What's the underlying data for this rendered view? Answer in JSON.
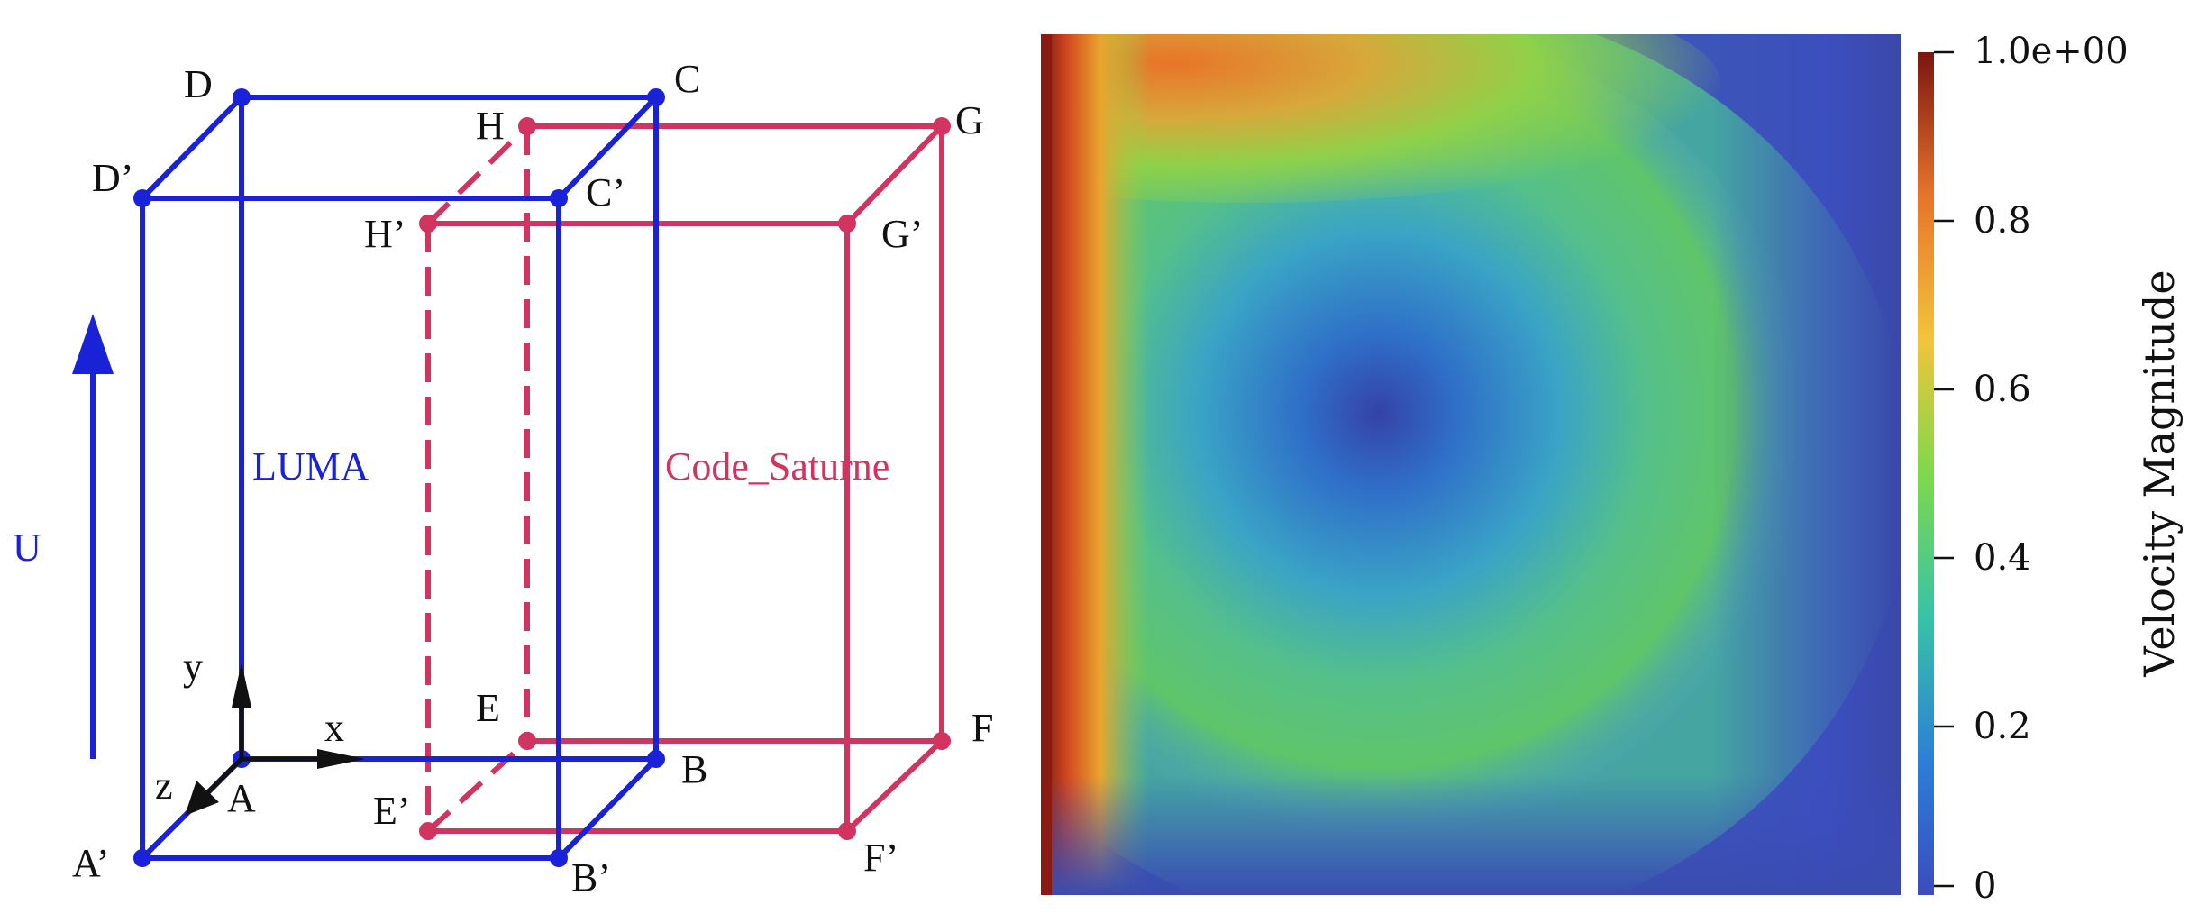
{
  "diagram": {
    "luma_label": "LUMA",
    "code_saturne_label": "Code_Saturne",
    "flow_label": "U",
    "axes": {
      "x": "x",
      "y": "y",
      "z": "z"
    },
    "luma_vertices": [
      "A",
      "B",
      "C",
      "D",
      "A’",
      "B’",
      "C’",
      "D’"
    ],
    "code_saturne_vertices": [
      "E",
      "F",
      "G",
      "H",
      "E’",
      "F’",
      "G’",
      "H’"
    ],
    "colors": {
      "luma": "#1a22d8",
      "code_saturne": "#d0345f",
      "flow_arrow": "#1a22d8"
    }
  },
  "velocity_field": {
    "colorbar_title": "Velocity Magnitude",
    "colorbar_ticks": [
      "1.0e+00",
      "0.8",
      "0.6",
      "0.4",
      "0.2",
      "0"
    ],
    "range": [
      0,
      1
    ],
    "colormap": [
      "#3b4cc0",
      "#2c7fd6",
      "#37c3a8",
      "#7ed94b",
      "#f2c43a",
      "#e8742a",
      "#7a1510"
    ]
  }
}
